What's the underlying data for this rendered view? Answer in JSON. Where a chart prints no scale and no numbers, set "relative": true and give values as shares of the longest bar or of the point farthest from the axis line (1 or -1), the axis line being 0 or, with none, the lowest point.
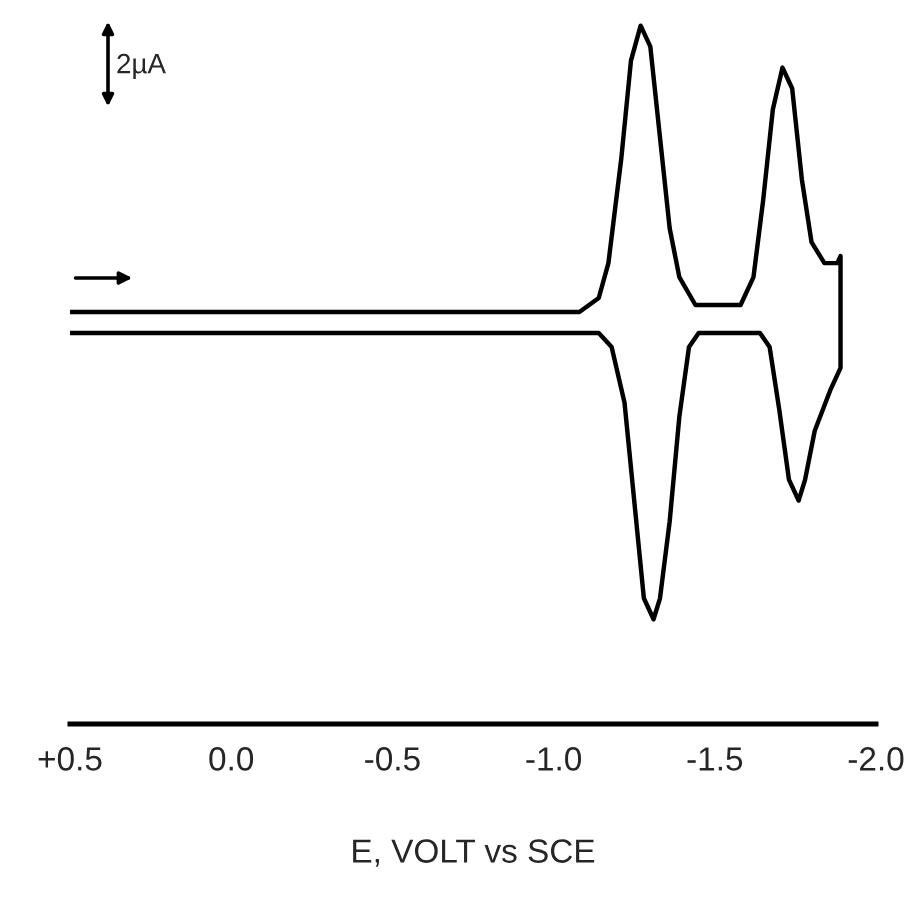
{
  "chart_data": {
    "type": "line",
    "relative": true,
    "xlabel": "E, VOLT vs SCE",
    "xlim": [
      0.5,
      -2.0
    ],
    "xticks": [
      {
        "value": 0.5,
        "label": "+0.5"
      },
      {
        "value": 0.0,
        "label": "0.0"
      },
      {
        "value": -0.5,
        "label": "-0.5"
      },
      {
        "value": -1.0,
        "label": "-1.0"
      },
      {
        "value": -1.5,
        "label": "-1.5"
      },
      {
        "value": -2.0,
        "label": "-2.0"
      }
    ],
    "tick_labels": "x",
    "grid": false,
    "legend": false,
    "marker": "none",
    "line_style": "solid",
    "annotations": [
      "2µA"
    ],
    "series": [
      {
        "color": "#000000",
        "x": [
          0.5,
          -1.08,
          -1.11,
          -1.14,
          -1.17,
          -1.21,
          -1.24,
          -1.27,
          -1.3,
          -1.33,
          -1.36,
          -1.39,
          -1.44,
          -1.52,
          -1.58,
          -1.62,
          -1.65,
          -1.68,
          -1.71,
          -1.74,
          -1.77,
          -1.8,
          -1.84,
          -1.88,
          -1.89,
          -1.89,
          -1.86,
          -1.81,
          -1.78,
          -1.76,
          -1.73,
          -1.7,
          -1.67,
          -1.64,
          -1.55,
          -1.45,
          -1.42,
          -1.39,
          -1.36,
          -1.33,
          -1.31,
          -1.28,
          -1.25,
          -1.22,
          -1.18,
          -1.14,
          -1.08,
          0.5
        ],
        "values": [
          0.59,
          0.59,
          0.6,
          0.61,
          0.66,
          0.81,
          0.95,
          1,
          0.97,
          0.84,
          0.71,
          0.64,
          0.6,
          0.6,
          0.6,
          0.64,
          0.75,
          0.88,
          0.94,
          0.91,
          0.78,
          0.69,
          0.66,
          0.66,
          0.67,
          0.51,
          0.48,
          0.42,
          0.35,
          0.32,
          0.35,
          0.45,
          0.54,
          0.56,
          0.56,
          0.56,
          0.54,
          0.44,
          0.29,
          0.18,
          0.15,
          0.18,
          0.32,
          0.46,
          0.54,
          0.56,
          0.56,
          0.56
        ]
      }
    ]
  }
}
